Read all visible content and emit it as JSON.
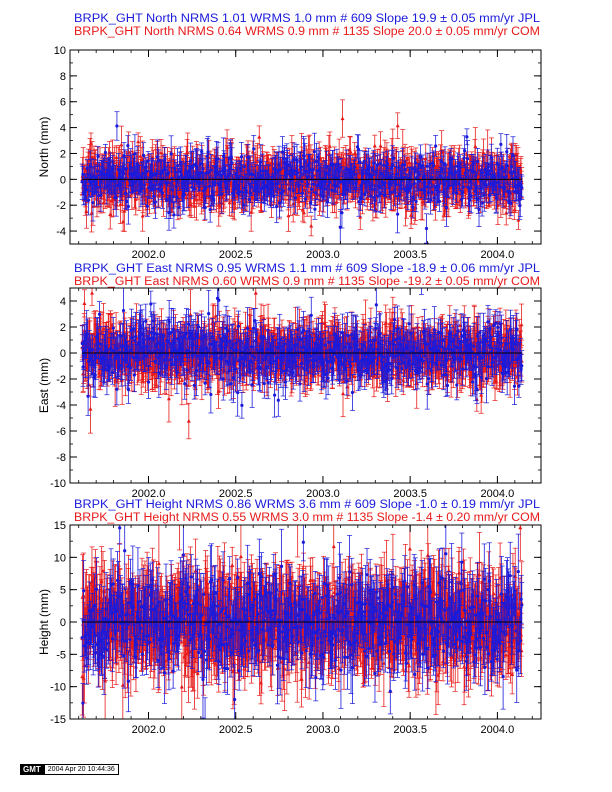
{
  "chart_data": [
    {
      "type": "scatter",
      "ylabel": "North (mm)",
      "xlim": [
        2001.55,
        2004.25
      ],
      "ylim": [
        -5,
        10
      ],
      "xticks": [
        2002.0,
        2002.5,
        2003.0,
        2003.5,
        2004.0
      ],
      "xtick_labels": [
        "2002.0",
        "2002.5",
        "2003.0",
        "2003.5",
        "2004.0"
      ],
      "yticks": [
        -4,
        -2,
        0,
        2,
        4,
        6,
        8,
        10
      ],
      "ytick_labels": [
        "-4",
        "-2",
        "0",
        "2",
        "4",
        "6",
        "8",
        "10"
      ],
      "x_range": [
        2001.62,
        2004.14
      ],
      "series": [
        {
          "header": "BRPK_GHT North NRMS 1.01 WRMS  1.0 mm # 609 Slope   19.9 ±  0.05 mm/yr JPL",
          "count": 609,
          "spread": 1.0,
          "err": 1.0,
          "color": "#1a1adc"
        },
        {
          "header": "BRPK_GHT North NRMS 0.64 WRMS  0.9 mm # 1135 Slope   20.0 ±  0.05 mm/yr COM",
          "count": 1135,
          "spread": 0.9,
          "err": 1.1,
          "color": "#e81a1a"
        }
      ]
    },
    {
      "type": "scatter",
      "ylabel": "East (mm)",
      "xlim": [
        2001.55,
        2004.25
      ],
      "ylim": [
        -10,
        5
      ],
      "xticks": [
        2002.0,
        2002.5,
        2003.0,
        2003.5,
        2004.0
      ],
      "xtick_labels": [
        "2002.0",
        "2002.5",
        "2003.0",
        "2003.5",
        "2004.0"
      ],
      "yticks": [
        -10,
        -8,
        -6,
        -4,
        -2,
        0,
        2,
        4
      ],
      "ytick_labels": [
        "-10",
        "-8",
        "-6",
        "-4",
        "-2",
        "0",
        "2",
        "4"
      ],
      "x_range": [
        2001.62,
        2004.14
      ],
      "series": [
        {
          "header": "BRPK_GHT East NRMS 0.95 WRMS  1.1 mm # 609 Slope  -18.9 ±  0.06 mm/yr JPL",
          "count": 609,
          "spread": 1.1,
          "err": 1.3,
          "color": "#1a1adc"
        },
        {
          "header": "BRPK_GHT East NRMS 0.60 WRMS  0.9 mm # 1135 Slope  -19.2 ±  0.05 mm/yr COM",
          "count": 1135,
          "spread": 0.9,
          "err": 1.3,
          "color": "#e81a1a"
        }
      ]
    },
    {
      "type": "scatter",
      "ylabel": "Height (mm)",
      "xlim": [
        2001.55,
        2004.25
      ],
      "ylim": [
        -15,
        15
      ],
      "xticks": [
        2002.0,
        2002.5,
        2003.0,
        2003.5,
        2004.0
      ],
      "xtick_labels": [
        "2002.0",
        "2002.5",
        "2003.0",
        "2003.5",
        "2004.0"
      ],
      "yticks": [
        -15,
        -10,
        -5,
        0,
        5,
        10,
        15
      ],
      "ytick_labels": [
        "-15",
        "-10",
        "-5",
        "0",
        "5",
        "10",
        "15"
      ],
      "x_range": [
        2001.62,
        2004.14
      ],
      "series": [
        {
          "header": "BRPK_GHT Height NRMS 0.86 WRMS  3.6 mm # 609 Slope   -1.0 ±  0.19 mm/yr JPL",
          "count": 609,
          "spread": 3.6,
          "err": 4.0,
          "color": "#1a1adc"
        },
        {
          "header": "BRPK_GHT Height NRMS 0.55 WRMS  3.0 mm # 1135 Slope   -1.4 ±  0.20 mm/yr COM",
          "count": 1135,
          "spread": 3.0,
          "err": 4.5,
          "color": "#e81a1a"
        }
      ]
    }
  ],
  "stamp": {
    "logo": "GMT",
    "timestamp": "2004 Apr 20 10:44:36"
  }
}
